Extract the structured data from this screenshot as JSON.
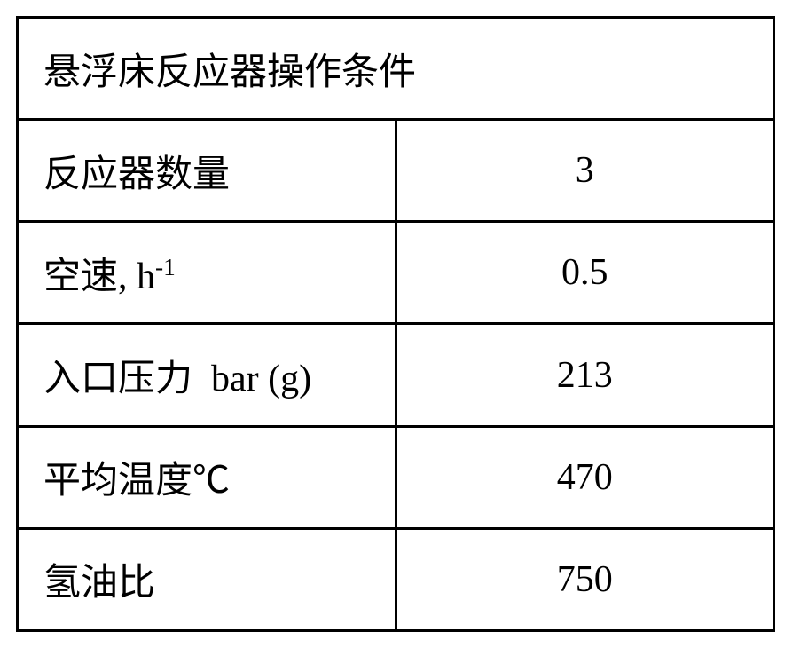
{
  "table": {
    "title": "悬浮床反应器操作条件",
    "border_color": "#000000",
    "background_color": "#ffffff",
    "text_color": "#000000",
    "title_fontsize": 42,
    "cell_fontsize": 42,
    "rows": [
      {
        "label_html": "反应器数量",
        "value": "3"
      },
      {
        "label_html": "空速, h<sup>-1</sup>",
        "value": "0.5"
      },
      {
        "label_html": "入口压力&nbsp;&nbsp;bar (g)",
        "value": "213"
      },
      {
        "label_html": "平均温度℃",
        "value": "470"
      },
      {
        "label_html": "氢油比",
        "value": "750"
      }
    ]
  }
}
